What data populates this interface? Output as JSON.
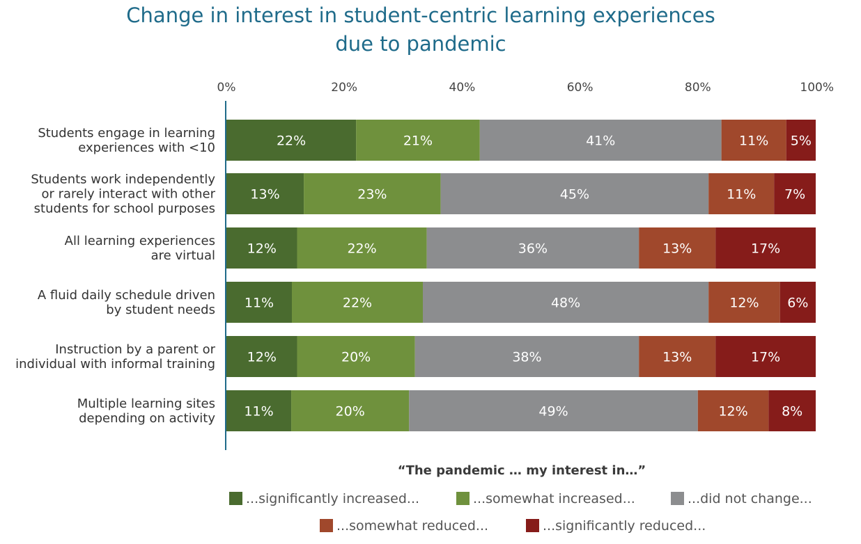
{
  "chart_data": {
    "type": "bar",
    "orientation": "horizontal",
    "stacked": true,
    "title": "Change in interest in student-centric learning experiences due to pandemic",
    "title_lines": [
      "Change in interest in student-centric learning experiences",
      "due to pandemic"
    ],
    "xlim": [
      0,
      100
    ],
    "x_ticks": [
      "0%",
      "20%",
      "40%",
      "60%",
      "80%",
      "100%"
    ],
    "x_tick_values": [
      0,
      20,
      40,
      60,
      80,
      100
    ],
    "x_axis_position": "top",
    "grid": false,
    "categories": [
      [
        "Students engage in learning",
        "experiences with <10"
      ],
      [
        "Students work independently",
        "or rarely interact with other",
        "students for school purposes"
      ],
      [
        "All learning experiences",
        "are virtual"
      ],
      [
        "A fluid daily schedule driven",
        "by student needs"
      ],
      [
        "Instruction by a parent or",
        "individual with informal training"
      ],
      [
        "Multiple learning sites",
        "depending on activity"
      ]
    ],
    "series": [
      {
        "name": "...significantly increased...",
        "color": "#4a6b2f",
        "values": [
          22,
          13,
          12,
          11,
          12,
          11
        ]
      },
      {
        "name": "...somewhat increased...",
        "color": "#6f913d",
        "values": [
          21,
          23,
          22,
          22,
          20,
          20
        ]
      },
      {
        "name": "...did not change...",
        "color": "#8c8d8f",
        "values": [
          41,
          45,
          36,
          48,
          38,
          49
        ]
      },
      {
        "name": "...somewhat reduced...",
        "color": "#a0482c",
        "values": [
          11,
          11,
          13,
          12,
          13,
          12
        ]
      },
      {
        "name": "...significantly reduced...",
        "color": "#861c1a",
        "values": [
          5,
          7,
          17,
          6,
          17,
          8
        ]
      }
    ],
    "data_labels": [
      [
        "22%",
        "21%",
        "41%",
        "11%",
        "5%"
      ],
      [
        "13%",
        "23%",
        "45%",
        "11%",
        "7%"
      ],
      [
        "12%",
        "22%",
        "36%",
        "13%",
        "17%"
      ],
      [
        "11%",
        "22%",
        "48%",
        "12%",
        "6%"
      ],
      [
        "12%",
        "20%",
        "38%",
        "13%",
        "17%"
      ],
      [
        "11%",
        "20%",
        "49%",
        "12%",
        "8%"
      ]
    ],
    "legend_title": "“The pandemic … my interest in…”",
    "legend_placement": "bottom",
    "axis_color": "#1f6b8a"
  }
}
